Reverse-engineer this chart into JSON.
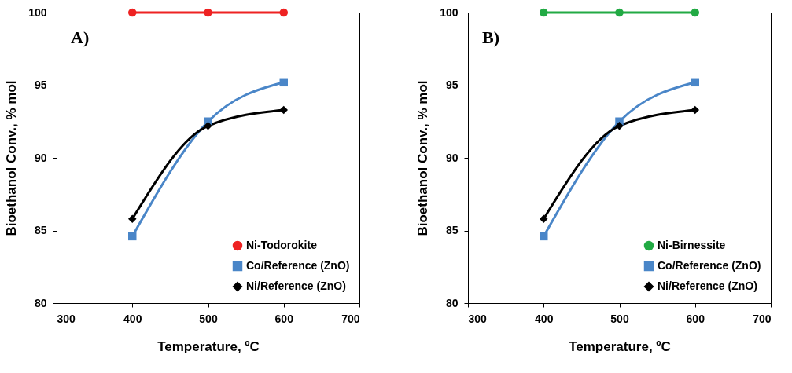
{
  "chart_data": [
    {
      "type": "line",
      "xlabel": "Temperature, ºC",
      "ylabel": "Bioethanol Conv., % mol",
      "x": [
        400,
        500,
        600
      ],
      "xlim": [
        300,
        700
      ],
      "xticks": [
        300,
        400,
        500,
        600,
        700
      ],
      "ylim": [
        80,
        100
      ],
      "yticks": [
        80,
        85,
        90,
        95,
        100
      ],
      "grid": false,
      "legend": "bottom right",
      "annotations": [
        "A)"
      ],
      "series": [
        {
          "name": "Ni-Todorokite",
          "color": "#ee2222",
          "marker": "circle",
          "values": [
            100,
            100,
            100
          ]
        },
        {
          "name": "Co/Reference (ZnO)",
          "color": "#4a86c8",
          "marker": "square",
          "values": [
            84.6,
            92.5,
            95.2
          ]
        },
        {
          "name": "Ni/Reference (ZnO)",
          "color": "#000000",
          "marker": "diamond",
          "values": [
            85.8,
            92.2,
            93.3
          ]
        }
      ]
    },
    {
      "type": "line",
      "xlabel": "Temperature, ºC",
      "ylabel": "Bioethanol Conv., % mol",
      "x": [
        400,
        500,
        600
      ],
      "xlim": [
        300,
        700
      ],
      "xticks": [
        300,
        400,
        500,
        600,
        700
      ],
      "ylim": [
        80,
        100
      ],
      "yticks": [
        80,
        85,
        90,
        95,
        100
      ],
      "grid": false,
      "legend": "bottom right",
      "annotations": [
        "B)"
      ],
      "series": [
        {
          "name": "Ni-Birnessite",
          "color": "#22aa44",
          "marker": "circle",
          "values": [
            100,
            100,
            100
          ]
        },
        {
          "name": "Co/Reference (ZnO)",
          "color": "#4a86c8",
          "marker": "square",
          "values": [
            84.6,
            92.5,
            95.2
          ]
        },
        {
          "name": "Ni/Reference (ZnO)",
          "color": "#000000",
          "marker": "diamond",
          "values": [
            85.8,
            92.2,
            93.3
          ]
        }
      ]
    }
  ]
}
